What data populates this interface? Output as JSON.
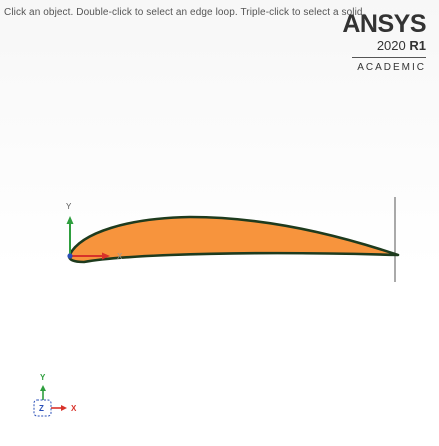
{
  "viewport": {
    "hint_text": "Click an object. Double-click to select an edge loop. Triple-click to select a solid.",
    "brand": {
      "name": "ANSYS",
      "version_year": "2020",
      "version_release": "R1",
      "edition": "ACADEMIC"
    },
    "model": {
      "shape": "airfoil-surface",
      "fill_color": "#F7943D",
      "edge_color": "#1E3B1E"
    },
    "local_triad": {
      "y_label": "Y",
      "x_label": "X",
      "y_color": "#2E9E3E",
      "x_color": "#D8322A",
      "origin_color": "#2A4FB8"
    },
    "global_triad": {
      "y_label": "Y",
      "z_label": "Z",
      "x_label": "X",
      "y_color": "#2E9E3E",
      "z_color": "#2A4FB8",
      "x_color": "#D8322A"
    }
  }
}
